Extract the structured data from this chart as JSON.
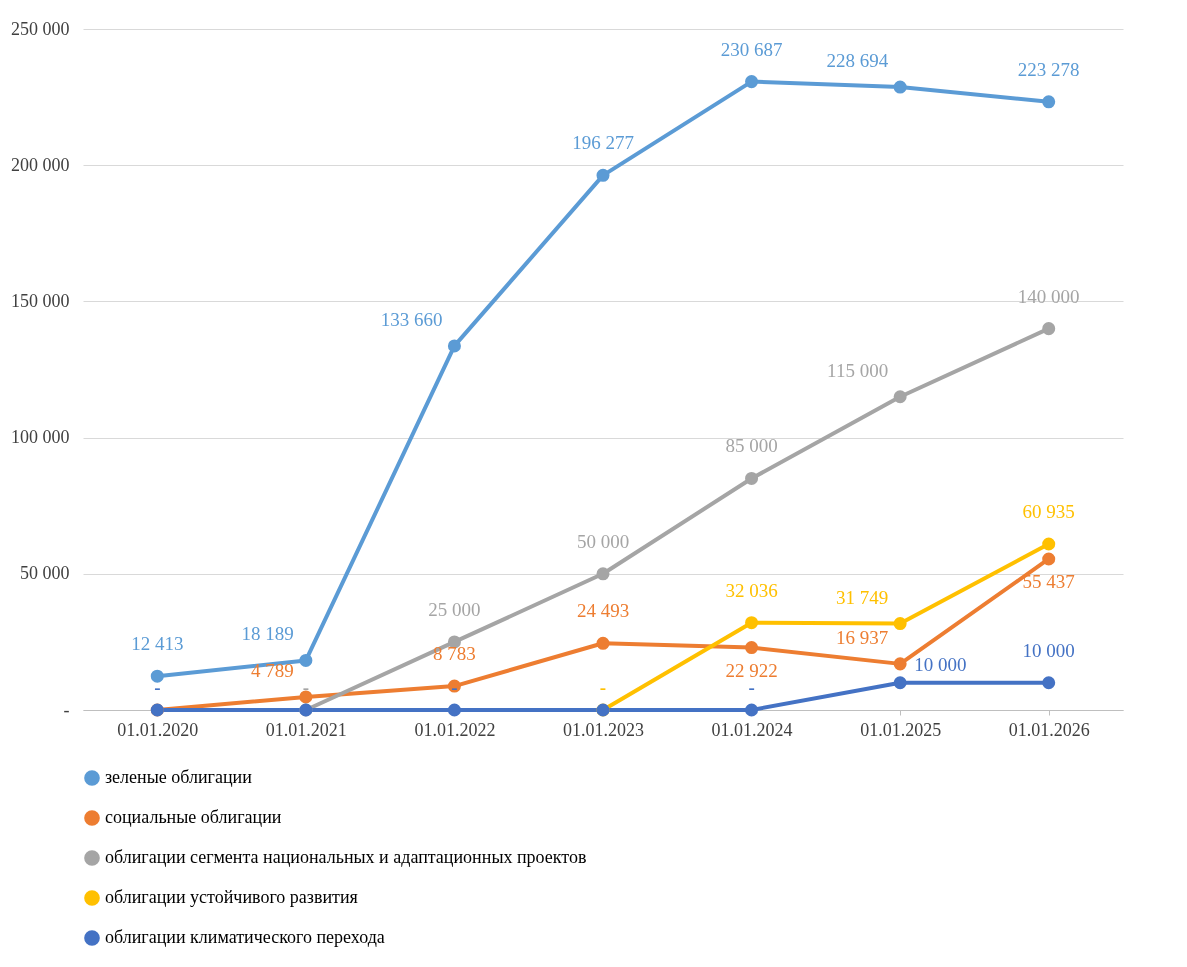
{
  "chart_data": {
    "type": "line",
    "categories": [
      "01.01.2020",
      "01.01.2021",
      "01.01.2022",
      "01.01.2023",
      "01.01.2024",
      "01.01.2025",
      "01.01.2026"
    ],
    "series": [
      {
        "name": "зеленые облигации",
        "color": "#5b9bd5",
        "values": [
          12413,
          18189,
          133660,
          196277,
          230687,
          228694,
          223278
        ],
        "value_labels": [
          "12 413",
          "18 189",
          "133 660",
          "196 277",
          "230 687",
          "228 694",
          "223 278"
        ]
      },
      {
        "name": "социальные облигации",
        "color": "#ed7d31",
        "values": [
          0,
          4789,
          8783,
          24493,
          22922,
          16937,
          55437
        ],
        "value_labels": [
          null,
          "4 789",
          "8 783",
          "24 493",
          "22 922",
          "16 937",
          "55 437"
        ]
      },
      {
        "name": "облигации сегмента национальных и адаптационных проектов",
        "color": "#a5a5a5",
        "values": [
          null,
          0,
          25000,
          50000,
          85000,
          115000,
          140000
        ],
        "value_labels": [
          null,
          "-",
          "25 000",
          "50 000",
          "85 000",
          "115 000",
          "140 000"
        ]
      },
      {
        "name": "облигации устойчивого развития",
        "color": "#ffc000",
        "values": [
          null,
          null,
          null,
          0,
          32036,
          31749,
          60935
        ],
        "value_labels": [
          null,
          null,
          null,
          "-",
          "32 036",
          "31 749",
          "60 935"
        ]
      },
      {
        "name": "облигации климатического перехода",
        "color": "#4472c4",
        "values": [
          0,
          0,
          0,
          0,
          0,
          10000,
          10000
        ],
        "value_labels": [
          "-",
          null,
          "-",
          null,
          "-",
          "10 000",
          "10 000"
        ]
      }
    ],
    "ylim": [
      0,
      250000
    ],
    "yticks": [
      {
        "value": 0,
        "label": "-"
      },
      {
        "value": 50000,
        "label": "50 000"
      },
      {
        "value": 100000,
        "label": "100 000"
      },
      {
        "value": 150000,
        "label": "150 000"
      },
      {
        "value": 200000,
        "label": "200 000"
      },
      {
        "value": 250000,
        "label": "250 000"
      }
    ],
    "grid": "y",
    "legend": "bottom",
    "marker": "circle",
    "line_style": "solid"
  }
}
